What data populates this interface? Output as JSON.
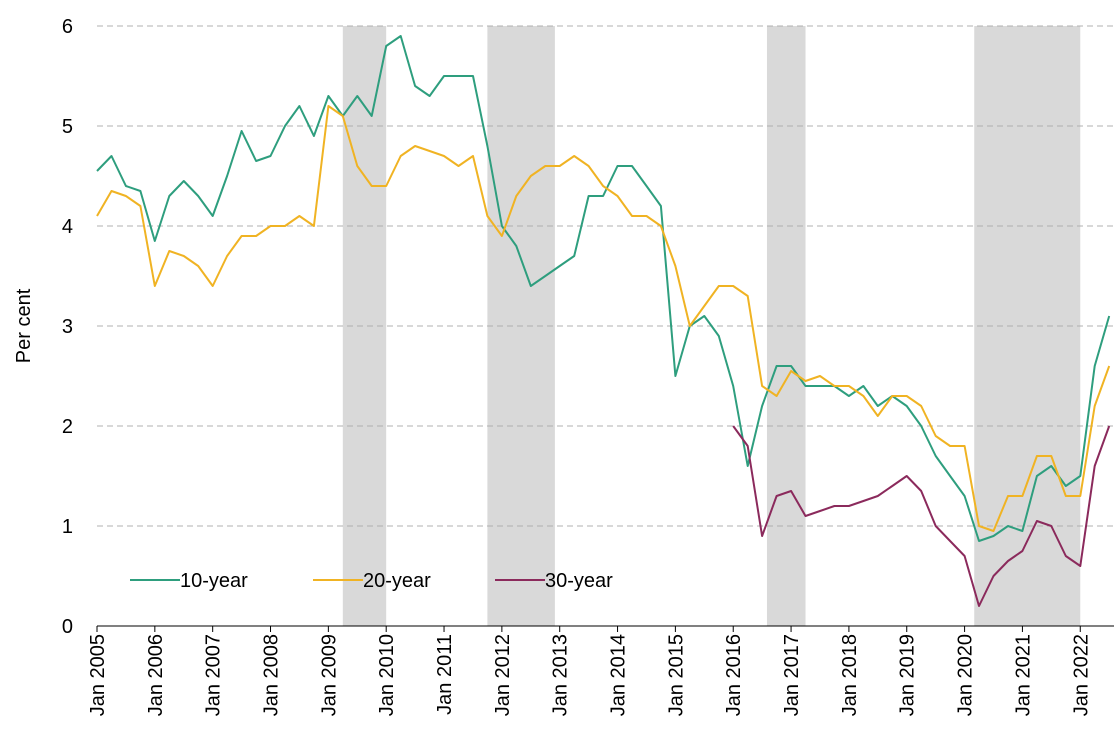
{
  "chart_data": {
    "type": "line",
    "ylabel": "Per cent",
    "x": [
      "2005-01",
      "2005-04",
      "2005-07",
      "2005-10",
      "2006-01",
      "2006-04",
      "2006-07",
      "2006-10",
      "2007-01",
      "2007-04",
      "2007-07",
      "2007-10",
      "2008-01",
      "2008-04",
      "2008-07",
      "2008-10",
      "2009-01",
      "2009-04",
      "2009-07",
      "2009-10",
      "2010-01",
      "2010-04",
      "2010-07",
      "2010-10",
      "2011-01",
      "2011-04",
      "2011-07",
      "2011-10",
      "2012-01",
      "2012-04",
      "2012-07",
      "2012-10",
      "2013-01",
      "2013-04",
      "2013-07",
      "2013-10",
      "2014-01",
      "2014-04",
      "2014-07",
      "2014-10",
      "2015-01",
      "2015-04",
      "2015-07",
      "2015-10",
      "2016-01",
      "2016-04",
      "2016-07",
      "2016-10",
      "2017-01",
      "2017-04",
      "2017-07",
      "2017-10",
      "2018-01",
      "2018-04",
      "2018-07",
      "2018-10",
      "2019-01",
      "2019-04",
      "2019-07",
      "2019-10",
      "2020-01",
      "2020-04",
      "2020-07",
      "2020-10",
      "2021-01",
      "2021-04",
      "2021-07",
      "2021-10",
      "2022-01",
      "2022-04",
      "2022-07"
    ],
    "series": [
      {
        "name": "10-year",
        "color": "#2e9e7e",
        "values": [
          4.55,
          4.7,
          4.4,
          4.35,
          3.85,
          4.3,
          4.45,
          4.3,
          4.1,
          4.5,
          4.95,
          4.65,
          4.7,
          5.0,
          5.2,
          4.9,
          5.3,
          5.1,
          5.3,
          5.1,
          5.8,
          5.9,
          5.4,
          5.3,
          5.5,
          5.5,
          5.5,
          4.8,
          4.0,
          3.8,
          3.4,
          3.5,
          3.6,
          3.7,
          4.3,
          4.3,
          4.6,
          4.6,
          4.4,
          4.2,
          2.5,
          3.0,
          3.1,
          2.9,
          2.4,
          1.6,
          2.2,
          2.6,
          2.6,
          2.4,
          2.4,
          2.4,
          2.3,
          2.4,
          2.2,
          2.3,
          2.2,
          2.0,
          1.7,
          1.5,
          1.3,
          0.85,
          0.9,
          1.0,
          0.95,
          1.5,
          1.6,
          1.4,
          1.5,
          2.6,
          3.1
        ]
      },
      {
        "name": "20-year",
        "color": "#f0b323",
        "values": [
          4.1,
          4.35,
          4.3,
          4.2,
          3.4,
          3.75,
          3.7,
          3.6,
          3.4,
          3.7,
          3.9,
          3.9,
          4.0,
          4.0,
          4.1,
          4.0,
          5.2,
          5.1,
          4.6,
          4.4,
          4.4,
          4.7,
          4.8,
          4.75,
          4.7,
          4.6,
          4.7,
          4.1,
          3.9,
          4.3,
          4.5,
          4.6,
          4.6,
          4.7,
          4.6,
          4.4,
          4.3,
          4.1,
          4.1,
          4.0,
          3.6,
          3.0,
          3.2,
          3.4,
          3.4,
          3.3,
          2.4,
          2.3,
          2.55,
          2.45,
          2.5,
          2.4,
          2.4,
          2.3,
          2.1,
          2.3,
          2.3,
          2.2,
          1.9,
          1.8,
          1.8,
          1.0,
          0.95,
          1.3,
          1.3,
          1.7,
          1.7,
          1.3,
          1.3,
          2.2,
          2.6
        ]
      },
      {
        "name": "30-year",
        "color": "#8b2a5c",
        "values": [
          null,
          null,
          null,
          null,
          null,
          null,
          null,
          null,
          null,
          null,
          null,
          null,
          null,
          null,
          null,
          null,
          null,
          null,
          null,
          null,
          null,
          null,
          null,
          null,
          null,
          null,
          null,
          null,
          null,
          null,
          null,
          null,
          null,
          null,
          null,
          null,
          null,
          null,
          null,
          null,
          null,
          null,
          null,
          null,
          2.0,
          1.8,
          0.9,
          1.3,
          1.35,
          1.1,
          1.15,
          1.2,
          1.2,
          1.25,
          1.3,
          1.4,
          1.5,
          1.35,
          1.0,
          0.85,
          0.7,
          0.2,
          0.5,
          0.65,
          0.75,
          1.05,
          1.0,
          0.7,
          0.6,
          1.6,
          2.0
        ]
      }
    ],
    "shaded_periods": [
      [
        "2009-04",
        "2010-01"
      ],
      [
        "2011-10",
        "2012-12"
      ],
      [
        "2016-08",
        "2017-04"
      ],
      [
        "2020-03",
        "2022-01"
      ]
    ],
    "xlim": [
      "2005-01",
      "2022-08"
    ],
    "xticks": [
      {
        "value": "2005-01",
        "label": "Jan 2005"
      },
      {
        "value": "2006-01",
        "label": "Jan 2006"
      },
      {
        "value": "2007-01",
        "label": "Jan 2007"
      },
      {
        "value": "2008-01",
        "label": "Jan 2008"
      },
      {
        "value": "2009-01",
        "label": "Jan 2009"
      },
      {
        "value": "2010-01",
        "label": "Jan 2010"
      },
      {
        "value": "2011-01",
        "label": "Jan 2011"
      },
      {
        "value": "2012-01",
        "label": "Jan 2012"
      },
      {
        "value": "2013-01",
        "label": "Jan 2013"
      },
      {
        "value": "2014-01",
        "label": "Jan 2014"
      },
      {
        "value": "2015-01",
        "label": "Jan 2015"
      },
      {
        "value": "2016-01",
        "label": "Jan 2016"
      },
      {
        "value": "2017-01",
        "label": "Jan 2017"
      },
      {
        "value": "2018-01",
        "label": "Jan 2018"
      },
      {
        "value": "2019-01",
        "label": "Jan 2019"
      },
      {
        "value": "2020-01",
        "label": "Jan 2020"
      },
      {
        "value": "2021-01",
        "label": "Jan 2021"
      },
      {
        "value": "2022-01",
        "label": "Jan 2022"
      }
    ],
    "ylim": [
      0,
      6
    ],
    "yticks": [
      0,
      1,
      2,
      3,
      4,
      5,
      6
    ],
    "grid": true
  }
}
